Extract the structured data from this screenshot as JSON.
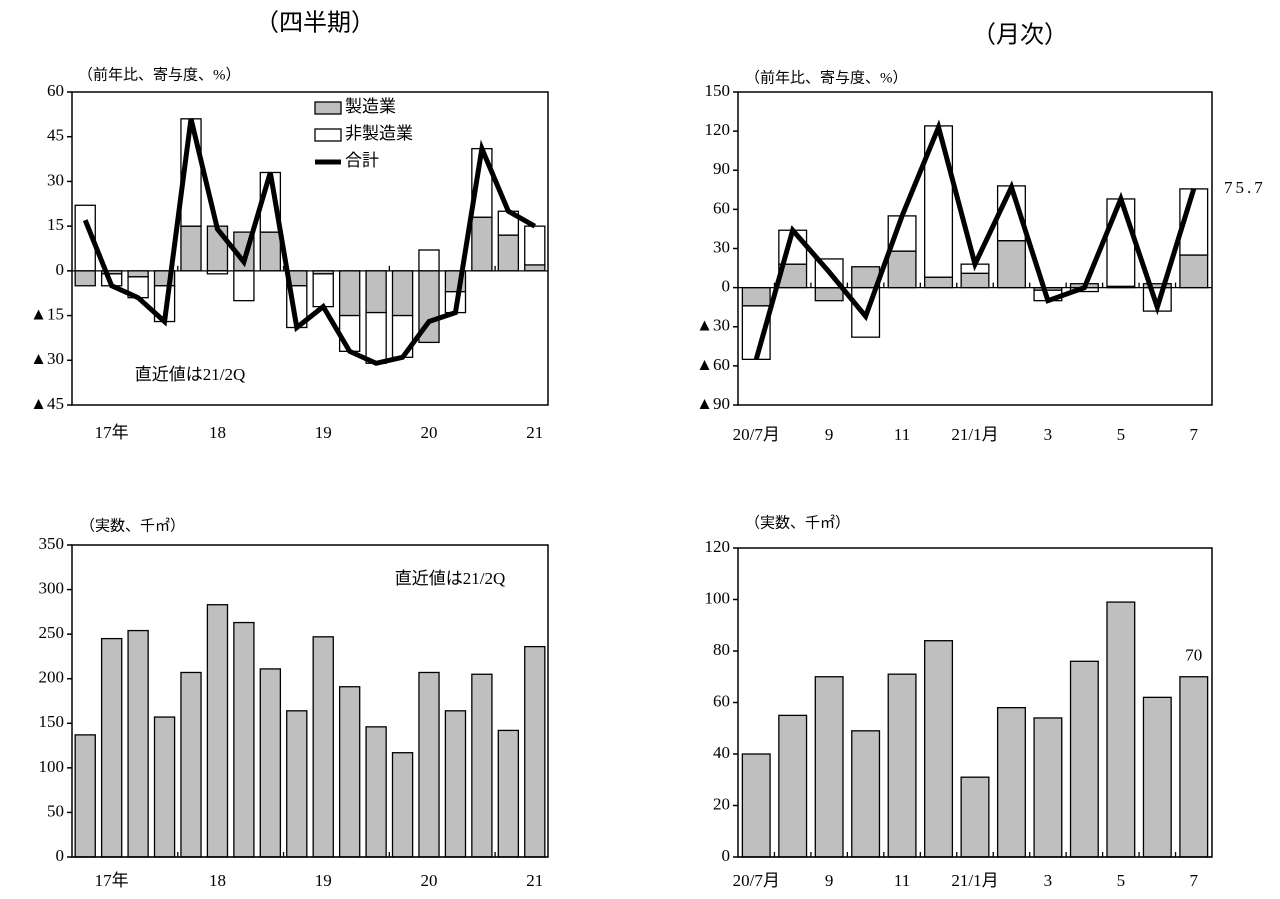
{
  "chart_data": [
    {
      "type": "combo",
      "title": "（四半期）",
      "y_label": "（前年比、寄与度、%）",
      "annotation": "直近値は21/2Q",
      "categories": [
        null,
        "17年",
        null,
        null,
        null,
        "18",
        null,
        null,
        null,
        "19",
        null,
        null,
        null,
        "20",
        null,
        null,
        null,
        "21"
      ],
      "series": [
        {
          "name": "製造業",
          "color": "#bfbfbf",
          "kind": "bar",
          "values": [
            -5,
            -1,
            -2,
            -5,
            15,
            15,
            13,
            13,
            -5,
            -1,
            -15,
            -14,
            -15,
            -24,
            -7,
            18,
            12,
            2
          ]
        },
        {
          "name": "非製造業",
          "color": "#ffffff",
          "kind": "bar",
          "values": [
            22,
            -4,
            -7,
            -12,
            36,
            -1,
            -10,
            20,
            -14,
            -11,
            -12,
            -17,
            -14,
            7,
            -7,
            23,
            8,
            13
          ]
        },
        {
          "name": "合計",
          "color": "#000000",
          "kind": "line",
          "values": [
            17,
            -5,
            -9,
            -17,
            51,
            14,
            3,
            33,
            -19,
            -12,
            -27,
            -31,
            -29,
            -17,
            -14,
            41,
            20,
            15
          ]
        }
      ],
      "ylim": [
        -45,
        60
      ],
      "yticks": [
        {
          "value": -45,
          "label": "▲45"
        },
        {
          "value": -30,
          "label": "▲30"
        },
        {
          "value": -15,
          "label": "▲15"
        },
        0,
        15,
        30,
        45,
        60
      ],
      "legend": "upper right"
    },
    {
      "type": "combo",
      "title": "（月次）",
      "y_label": "（前年比、寄与度、%）",
      "categories": [
        "20/7月",
        null,
        "9",
        null,
        "11",
        null,
        "21/1月",
        null,
        "3",
        null,
        "5",
        null,
        "7"
      ],
      "series": [
        {
          "name": "製造業",
          "color": "#bfbfbf",
          "kind": "bar",
          "values": [
            -14,
            18,
            -10,
            16,
            28,
            8,
            11,
            36,
            -2,
            3,
            1,
            3,
            25
          ]
        },
        {
          "name": "非製造業",
          "color": "#ffffff",
          "kind": "bar",
          "values": [
            -41,
            26,
            22,
            -38,
            27,
            116,
            7,
            42,
            -8,
            -3,
            67,
            -18,
            50.7
          ]
        },
        {
          "name": "合計",
          "color": "#000000",
          "kind": "line",
          "label_last": true,
          "values": [
            -55,
            44,
            12,
            -22,
            55,
            123,
            18,
            77,
            -10,
            0,
            68,
            -15,
            75.7
          ]
        }
      ],
      "ylim": [
        -90,
        150
      ],
      "yticks": [
        {
          "value": -90,
          "label": "▲90"
        },
        {
          "value": -60,
          "label": "▲60"
        },
        {
          "value": -30,
          "label": "▲30"
        },
        0,
        30,
        60,
        90,
        120,
        150
      ]
    },
    {
      "type": "bar",
      "y_label": "（実数、千㎡）",
      "annotation": "直近値は21/2Q",
      "categories": [
        null,
        "17年",
        null,
        null,
        null,
        "18",
        null,
        null,
        null,
        "19",
        null,
        null,
        null,
        "20",
        null,
        null,
        null,
        "21"
      ],
      "values": [
        137,
        245,
        254,
        157,
        207,
        283,
        263,
        211,
        164,
        247,
        191,
        146,
        117,
        207,
        164,
        205,
        142,
        236
      ],
      "color": "#bfbfbf",
      "ylim": [
        0,
        350
      ],
      "yticks": [
        0,
        50,
        100,
        150,
        200,
        250,
        300,
        350
      ]
    },
    {
      "type": "bar",
      "y_label": "（実数、千㎡）",
      "categories": [
        "20/7月",
        null,
        "9",
        null,
        "11",
        null,
        "21/1月",
        null,
        "3",
        null,
        "5",
        null,
        "7"
      ],
      "values": [
        40,
        55,
        70,
        49,
        71,
        84,
        31,
        58,
        54,
        76,
        99,
        62,
        70
      ],
      "label_last": true,
      "color": "#bfbfbf",
      "ylim": [
        0,
        120
      ],
      "yticks": [
        0,
        20,
        40,
        60,
        80,
        100,
        120
      ]
    }
  ]
}
